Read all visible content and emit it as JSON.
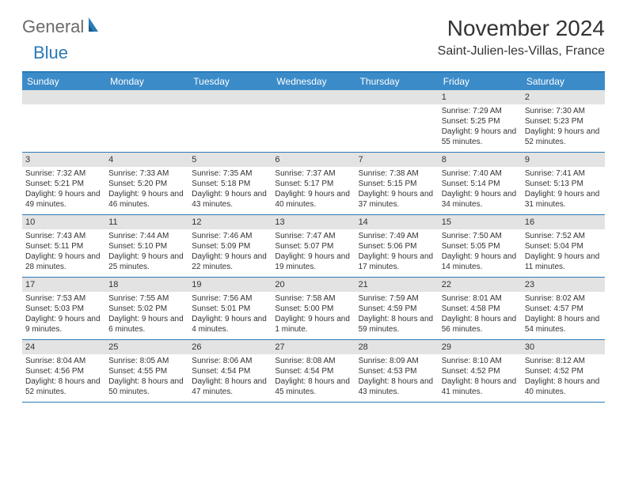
{
  "logo": {
    "text1": "General",
    "text2": "Blue"
  },
  "title": "November 2024",
  "location": "Saint-Julien-les-Villas, France",
  "colors": {
    "accent": "#2a7ab8",
    "header_bg": "#3b8bc9",
    "day_head_bg": "#e3e3e3",
    "text": "#333333",
    "logo_gray": "#6b6b6b"
  },
  "dow": [
    "Sunday",
    "Monday",
    "Tuesday",
    "Wednesday",
    "Thursday",
    "Friday",
    "Saturday"
  ],
  "weeks": [
    [
      null,
      null,
      null,
      null,
      null,
      {
        "n": "1",
        "sr": "Sunrise: 7:29 AM",
        "ss": "Sunset: 5:25 PM",
        "dl": "Daylight: 9 hours and 55 minutes."
      },
      {
        "n": "2",
        "sr": "Sunrise: 7:30 AM",
        "ss": "Sunset: 5:23 PM",
        "dl": "Daylight: 9 hours and 52 minutes."
      }
    ],
    [
      {
        "n": "3",
        "sr": "Sunrise: 7:32 AM",
        "ss": "Sunset: 5:21 PM",
        "dl": "Daylight: 9 hours and 49 minutes."
      },
      {
        "n": "4",
        "sr": "Sunrise: 7:33 AM",
        "ss": "Sunset: 5:20 PM",
        "dl": "Daylight: 9 hours and 46 minutes."
      },
      {
        "n": "5",
        "sr": "Sunrise: 7:35 AM",
        "ss": "Sunset: 5:18 PM",
        "dl": "Daylight: 9 hours and 43 minutes."
      },
      {
        "n": "6",
        "sr": "Sunrise: 7:37 AM",
        "ss": "Sunset: 5:17 PM",
        "dl": "Daylight: 9 hours and 40 minutes."
      },
      {
        "n": "7",
        "sr": "Sunrise: 7:38 AM",
        "ss": "Sunset: 5:15 PM",
        "dl": "Daylight: 9 hours and 37 minutes."
      },
      {
        "n": "8",
        "sr": "Sunrise: 7:40 AM",
        "ss": "Sunset: 5:14 PM",
        "dl": "Daylight: 9 hours and 34 minutes."
      },
      {
        "n": "9",
        "sr": "Sunrise: 7:41 AM",
        "ss": "Sunset: 5:13 PM",
        "dl": "Daylight: 9 hours and 31 minutes."
      }
    ],
    [
      {
        "n": "10",
        "sr": "Sunrise: 7:43 AM",
        "ss": "Sunset: 5:11 PM",
        "dl": "Daylight: 9 hours and 28 minutes."
      },
      {
        "n": "11",
        "sr": "Sunrise: 7:44 AM",
        "ss": "Sunset: 5:10 PM",
        "dl": "Daylight: 9 hours and 25 minutes."
      },
      {
        "n": "12",
        "sr": "Sunrise: 7:46 AM",
        "ss": "Sunset: 5:09 PM",
        "dl": "Daylight: 9 hours and 22 minutes."
      },
      {
        "n": "13",
        "sr": "Sunrise: 7:47 AM",
        "ss": "Sunset: 5:07 PM",
        "dl": "Daylight: 9 hours and 19 minutes."
      },
      {
        "n": "14",
        "sr": "Sunrise: 7:49 AM",
        "ss": "Sunset: 5:06 PM",
        "dl": "Daylight: 9 hours and 17 minutes."
      },
      {
        "n": "15",
        "sr": "Sunrise: 7:50 AM",
        "ss": "Sunset: 5:05 PM",
        "dl": "Daylight: 9 hours and 14 minutes."
      },
      {
        "n": "16",
        "sr": "Sunrise: 7:52 AM",
        "ss": "Sunset: 5:04 PM",
        "dl": "Daylight: 9 hours and 11 minutes."
      }
    ],
    [
      {
        "n": "17",
        "sr": "Sunrise: 7:53 AM",
        "ss": "Sunset: 5:03 PM",
        "dl": "Daylight: 9 hours and 9 minutes."
      },
      {
        "n": "18",
        "sr": "Sunrise: 7:55 AM",
        "ss": "Sunset: 5:02 PM",
        "dl": "Daylight: 9 hours and 6 minutes."
      },
      {
        "n": "19",
        "sr": "Sunrise: 7:56 AM",
        "ss": "Sunset: 5:01 PM",
        "dl": "Daylight: 9 hours and 4 minutes."
      },
      {
        "n": "20",
        "sr": "Sunrise: 7:58 AM",
        "ss": "Sunset: 5:00 PM",
        "dl": "Daylight: 9 hours and 1 minute."
      },
      {
        "n": "21",
        "sr": "Sunrise: 7:59 AM",
        "ss": "Sunset: 4:59 PM",
        "dl": "Daylight: 8 hours and 59 minutes."
      },
      {
        "n": "22",
        "sr": "Sunrise: 8:01 AM",
        "ss": "Sunset: 4:58 PM",
        "dl": "Daylight: 8 hours and 56 minutes."
      },
      {
        "n": "23",
        "sr": "Sunrise: 8:02 AM",
        "ss": "Sunset: 4:57 PM",
        "dl": "Daylight: 8 hours and 54 minutes."
      }
    ],
    [
      {
        "n": "24",
        "sr": "Sunrise: 8:04 AM",
        "ss": "Sunset: 4:56 PM",
        "dl": "Daylight: 8 hours and 52 minutes."
      },
      {
        "n": "25",
        "sr": "Sunrise: 8:05 AM",
        "ss": "Sunset: 4:55 PM",
        "dl": "Daylight: 8 hours and 50 minutes."
      },
      {
        "n": "26",
        "sr": "Sunrise: 8:06 AM",
        "ss": "Sunset: 4:54 PM",
        "dl": "Daylight: 8 hours and 47 minutes."
      },
      {
        "n": "27",
        "sr": "Sunrise: 8:08 AM",
        "ss": "Sunset: 4:54 PM",
        "dl": "Daylight: 8 hours and 45 minutes."
      },
      {
        "n": "28",
        "sr": "Sunrise: 8:09 AM",
        "ss": "Sunset: 4:53 PM",
        "dl": "Daylight: 8 hours and 43 minutes."
      },
      {
        "n": "29",
        "sr": "Sunrise: 8:10 AM",
        "ss": "Sunset: 4:52 PM",
        "dl": "Daylight: 8 hours and 41 minutes."
      },
      {
        "n": "30",
        "sr": "Sunrise: 8:12 AM",
        "ss": "Sunset: 4:52 PM",
        "dl": "Daylight: 8 hours and 40 minutes."
      }
    ]
  ]
}
